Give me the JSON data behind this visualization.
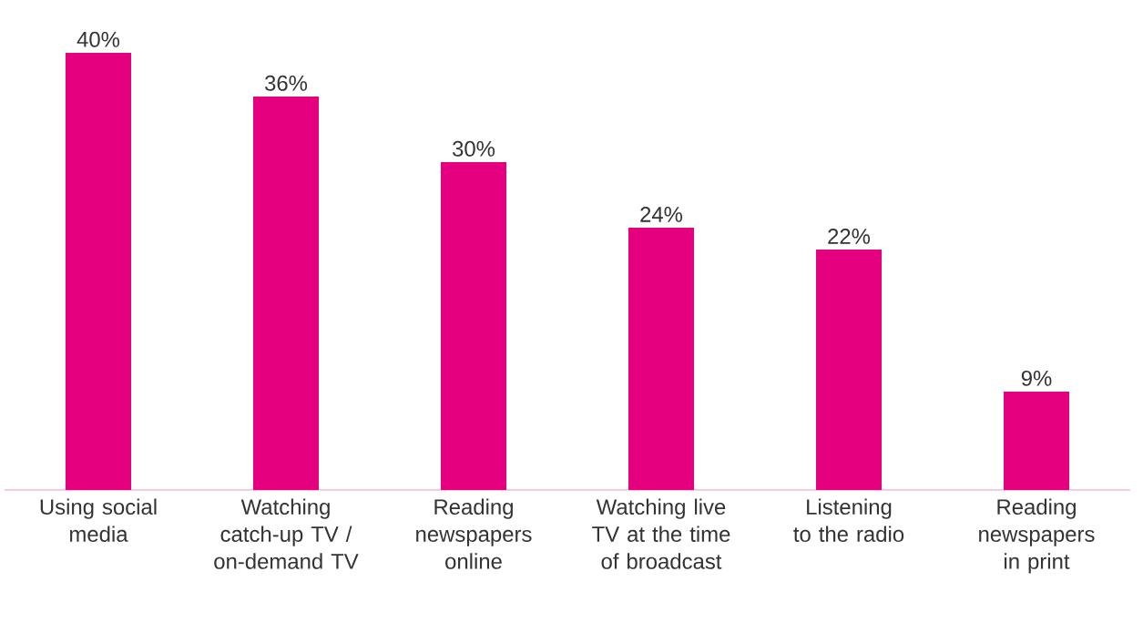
{
  "chart_data": {
    "type": "bar",
    "categories": [
      "Using social media",
      "Watching catch-up TV / on-demand TV",
      "Reading newspapers online",
      "Watching live TV at the time of broadcast",
      "Listening to the radio",
      "Reading newspapers in print"
    ],
    "values": [
      40,
      36,
      30,
      24,
      22,
      9
    ],
    "value_labels": [
      "40%",
      "36%",
      "30%",
      "24%",
      "22%",
      "9%"
    ],
    "color": "#e4007f"
  }
}
